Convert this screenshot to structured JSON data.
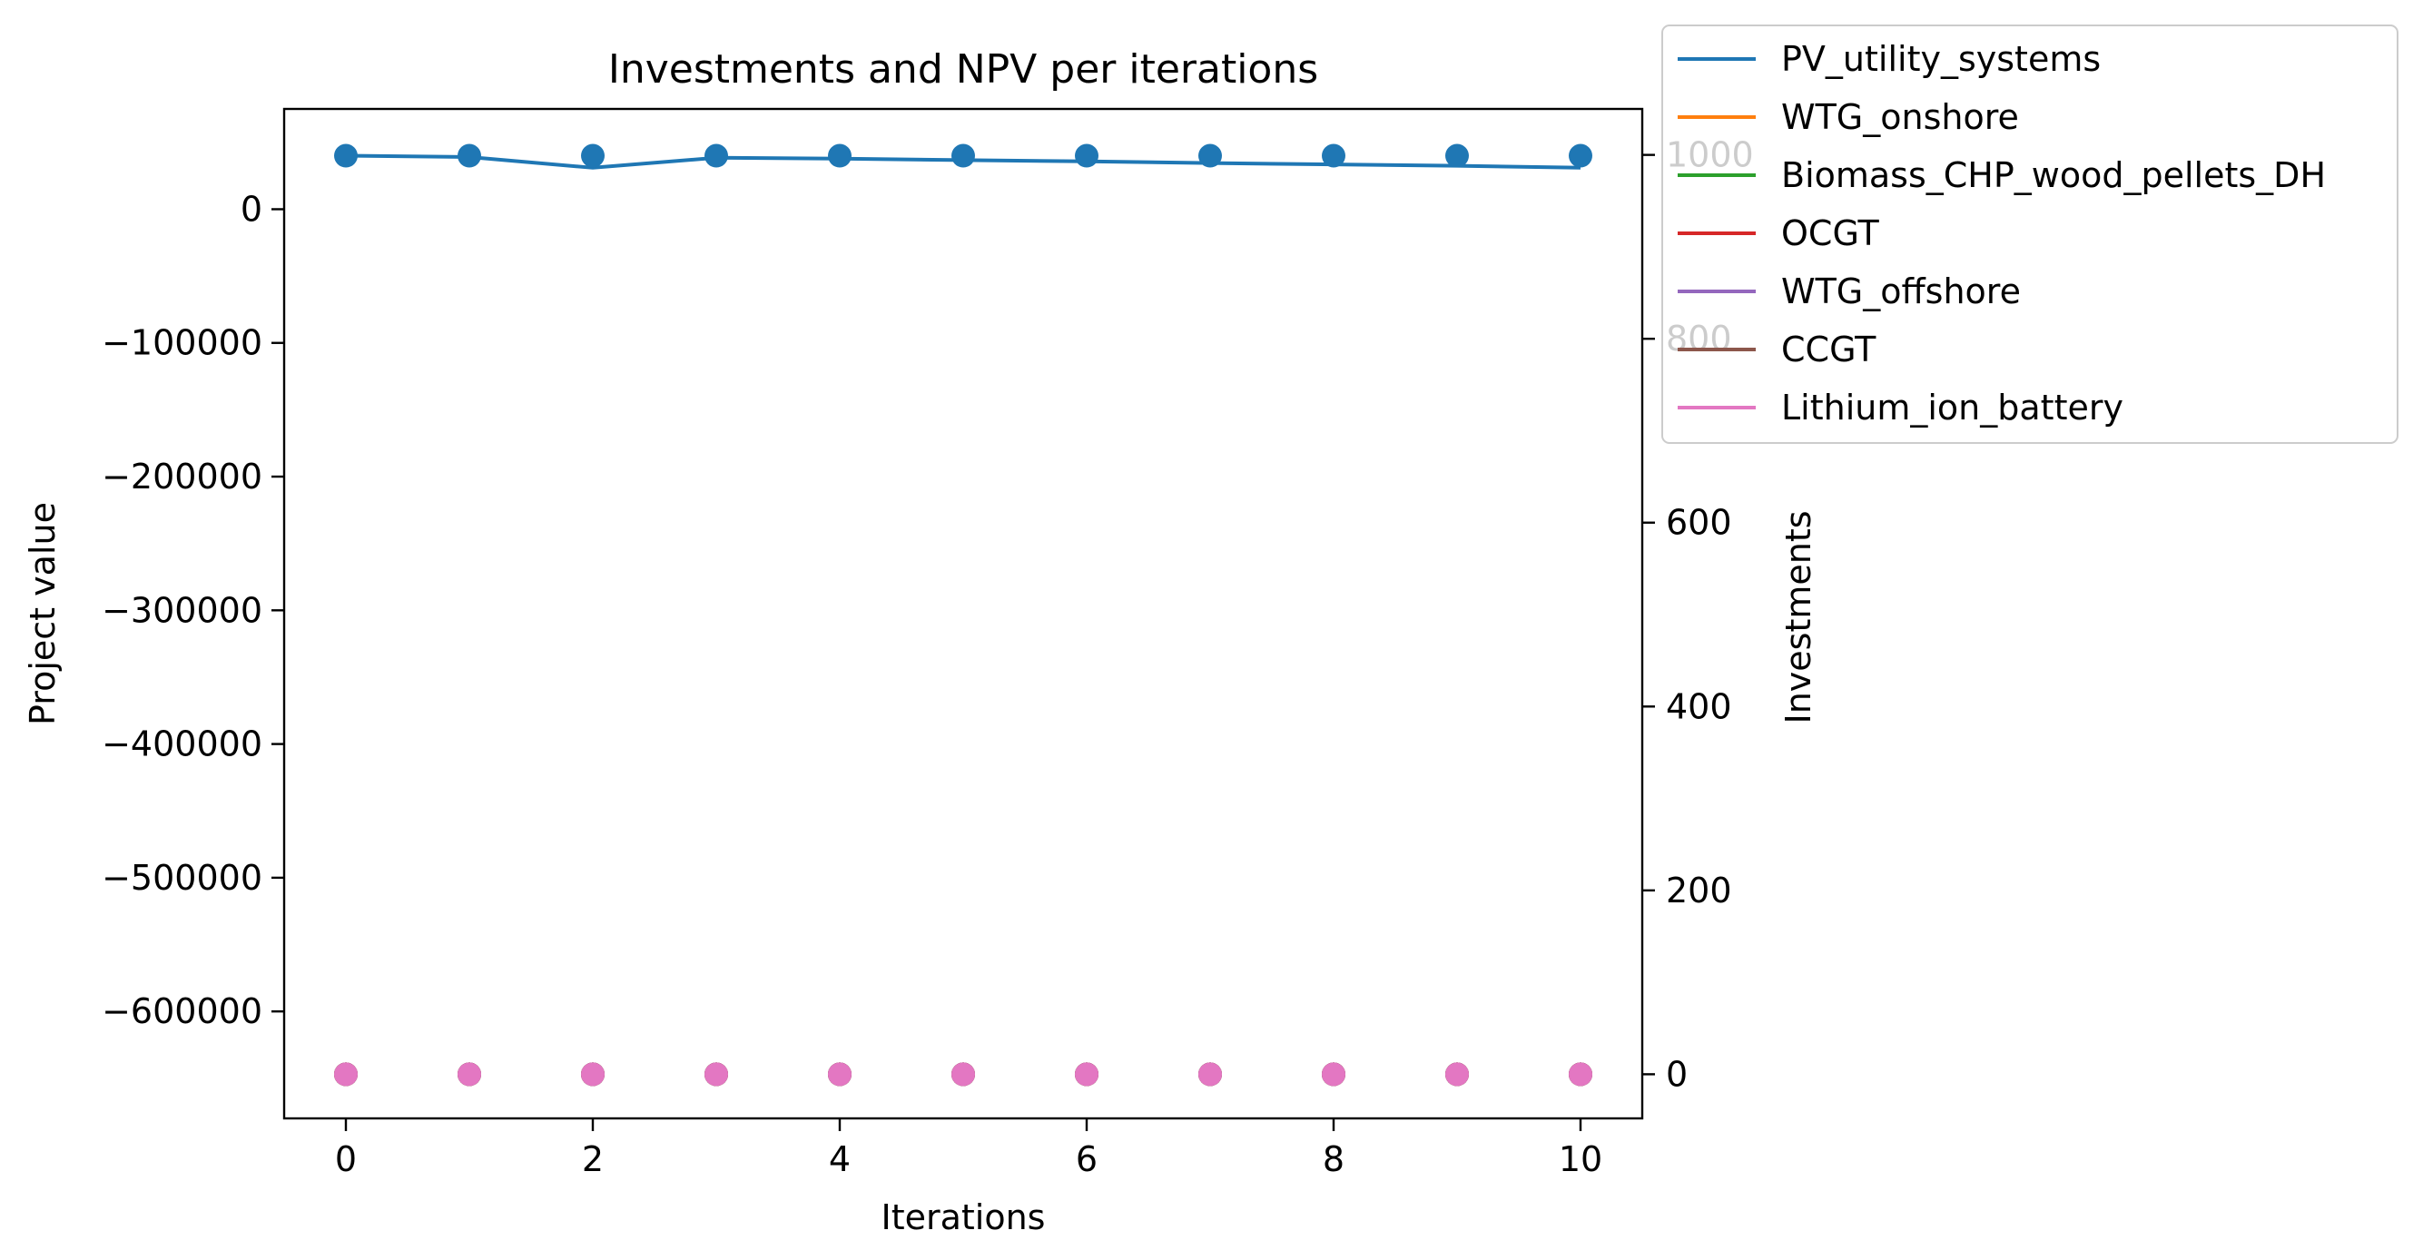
{
  "chart_data": {
    "type": "line",
    "title": "Investments and NPV per iterations",
    "xlabel": "Iterations",
    "ylabel_left": "Project value",
    "ylabel_right": "Investments",
    "x": [
      0,
      1,
      2,
      3,
      4,
      5,
      6,
      7,
      8,
      9,
      10
    ],
    "xticks": [
      0,
      2,
      4,
      6,
      8,
      10
    ],
    "xlim": [
      -0.5,
      10.5
    ],
    "ylim_left": [
      -680000,
      75000
    ],
    "yticks_left": [
      0,
      -100000,
      -200000,
      -300000,
      -400000,
      -500000,
      -600000
    ],
    "yticks_left_labels": [
      "0",
      "−100000",
      "−200000",
      "−300000",
      "−400000",
      "−500000",
      "−600000"
    ],
    "ylim_right": [
      -48,
      1050
    ],
    "yticks_right": [
      0,
      200,
      400,
      600,
      800,
      1000
    ],
    "yticks_right_labels": [
      "0",
      "200",
      "400",
      "600",
      "800",
      "1000"
    ],
    "npv_series": {
      "axis": "left",
      "color": "#1f77b4",
      "values": [
        40000,
        39000,
        31000,
        38500,
        37800,
        36700,
        35800,
        34500,
        33500,
        32500,
        31000
      ]
    },
    "investment_markers": {
      "axis": "left",
      "color": "#1f77b4",
      "values": [
        40000,
        40000,
        40000,
        40000,
        40000,
        40000,
        40000,
        40000,
        40000,
        40000,
        40000
      ]
    },
    "series": [
      {
        "name": "PV_utility_systems",
        "color": "#1f77b4",
        "axis": "right",
        "values": [
          0,
          0,
          0,
          0,
          0,
          0,
          0,
          0,
          0,
          0,
          0
        ]
      },
      {
        "name": "WTG_onshore",
        "color": "#ff7f0e",
        "axis": "right",
        "values": [
          0,
          0,
          0,
          0,
          0,
          0,
          0,
          0,
          0,
          0,
          0
        ]
      },
      {
        "name": "Biomass_CHP_wood_pellets_DH",
        "color": "#2ca02c",
        "axis": "right",
        "values": [
          0,
          0,
          0,
          0,
          0,
          0,
          0,
          0,
          0,
          0,
          0
        ]
      },
      {
        "name": "OCGT",
        "color": "#d62728",
        "axis": "right",
        "values": [
          0,
          0,
          0,
          0,
          0,
          0,
          0,
          0,
          0,
          0,
          0
        ]
      },
      {
        "name": "WTG_offshore",
        "color": "#9467bd",
        "axis": "right",
        "values": [
          0,
          0,
          0,
          0,
          0,
          0,
          0,
          0,
          0,
          0,
          0
        ]
      },
      {
        "name": "CCGT",
        "color": "#8c564b",
        "axis": "right",
        "values": [
          0,
          0,
          0,
          0,
          0,
          0,
          0,
          0,
          0,
          0,
          0
        ]
      },
      {
        "name": "Lithium_ion_battery",
        "color": "#e377c2",
        "axis": "right",
        "values": [
          0,
          0,
          0,
          0,
          0,
          0,
          0,
          0,
          0,
          0,
          0
        ]
      }
    ],
    "legend_position": "upper-right-outside",
    "grid": false
  }
}
